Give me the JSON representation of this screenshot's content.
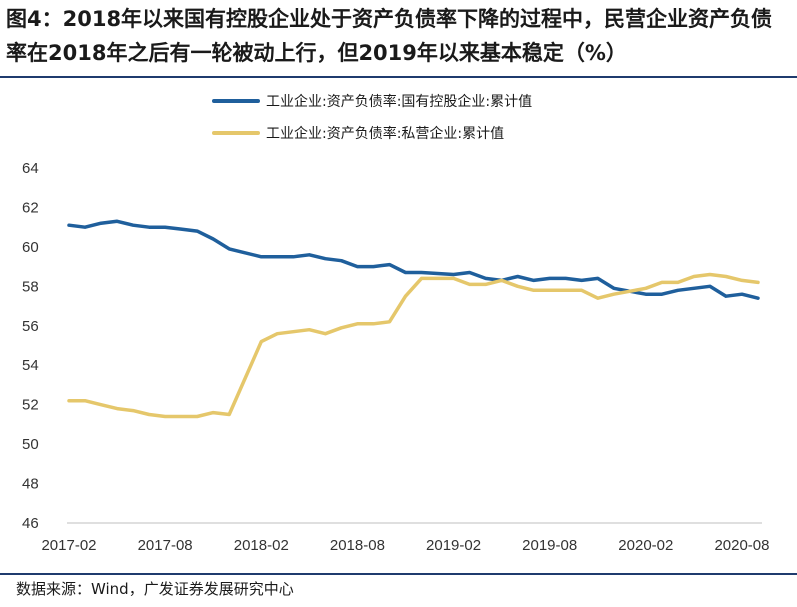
{
  "title": "图4：2018年以来国有控股企业处于资产负债率下降的过程中，民营企业资产负债率在2018年之后有一轮被动上行，但2019年以来基本稳定（%）",
  "source": "数据来源：Wind，广发证券发展研究中心",
  "chart_data": {
    "type": "line",
    "title": "",
    "xlabel": "",
    "ylabel": "",
    "ylim": [
      46,
      64
    ],
    "yticks": [
      "46",
      "48",
      "50",
      "52",
      "54",
      "56",
      "58",
      "60",
      "62",
      "64"
    ],
    "xticks": [
      "2017-02",
      "2017-08",
      "2018-02",
      "2018-08",
      "2019-02",
      "2019-08",
      "2020-02",
      "2020-08"
    ],
    "x": [
      "2017-02",
      "2017-03",
      "2017-04",
      "2017-05",
      "2017-06",
      "2017-07",
      "2017-08",
      "2017-09",
      "2017-10",
      "2017-11",
      "2017-12",
      "2018-02",
      "2018-03",
      "2018-04",
      "2018-05",
      "2018-06",
      "2018-07",
      "2018-08",
      "2018-09",
      "2018-10",
      "2018-11",
      "2018-12",
      "2019-02",
      "2019-03",
      "2019-04",
      "2019-05",
      "2019-06",
      "2019-07",
      "2019-08",
      "2019-09",
      "2019-10",
      "2019-11",
      "2019-12",
      "2020-02",
      "2020-03",
      "2020-04",
      "2020-05",
      "2020-06",
      "2020-07",
      "2020-08",
      "2020-09"
    ],
    "series": [
      {
        "name": "工业企业:资产负债率:国有控股企业:累计值",
        "color": "#1f5f9c",
        "values": [
          61.1,
          61.0,
          61.2,
          61.3,
          61.1,
          61.0,
          61.0,
          60.9,
          60.8,
          60.4,
          59.9,
          59.5,
          59.5,
          59.5,
          59.6,
          59.4,
          59.3,
          59.0,
          59.0,
          59.1,
          58.7,
          58.7,
          58.6,
          58.7,
          58.4,
          58.3,
          58.5,
          58.3,
          58.4,
          58.4,
          58.3,
          58.4,
          57.9,
          57.6,
          57.6,
          57.8,
          57.9,
          58.0,
          57.5,
          57.6,
          57.4
        ]
      },
      {
        "name": "工业企业:资产负债率:私营企业:累计值",
        "color": "#e5c76b",
        "values": [
          52.2,
          52.2,
          52.0,
          51.8,
          51.7,
          51.5,
          51.4,
          51.4,
          51.4,
          51.6,
          51.5,
          55.2,
          55.6,
          55.7,
          55.8,
          55.6,
          55.9,
          56.1,
          56.1,
          56.2,
          57.5,
          58.4,
          58.4,
          58.1,
          58.1,
          58.3,
          58.0,
          57.8,
          57.8,
          57.8,
          57.8,
          57.4,
          57.6,
          57.9,
          58.2,
          58.2,
          58.5,
          58.6,
          58.5,
          58.3,
          58.2
        ]
      }
    ],
    "grid": false,
    "legend": "top-left"
  }
}
